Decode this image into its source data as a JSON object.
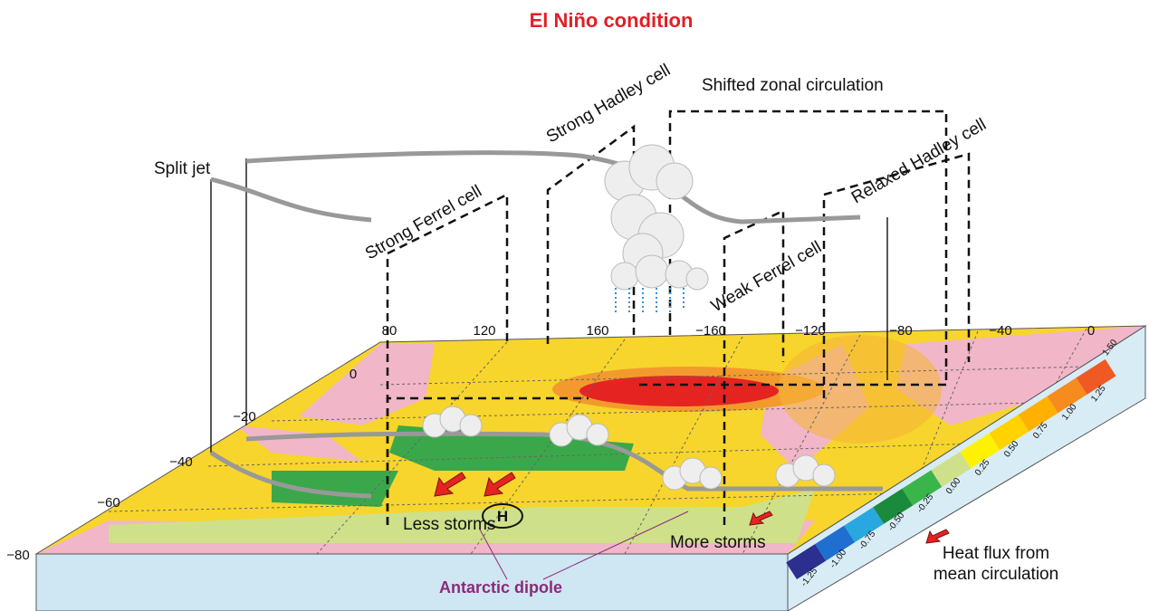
{
  "title": "El Niño condition",
  "circulation_labels": {
    "strong_hadley": "Strong Hadley cell",
    "shifted_zonal": "Shifted zonal circulation",
    "relaxed_hadley": "Relaxed Hadley cell",
    "strong_ferrel": "Strong Ferrel cell",
    "weak_ferrel": "Weak Ferrel cell",
    "split_jet": "Split jet"
  },
  "longitude_labels": [
    "80",
    "120",
    "160",
    "−160",
    "−120",
    "−80",
    "−40",
    "0"
  ],
  "latitude_labels": [
    "0",
    "−20",
    "−40",
    "−60",
    "−80"
  ],
  "annotations": {
    "less_storms": "Less storms",
    "more_storms": "More storms",
    "dipole": "Antarctic dipole",
    "high": "H"
  },
  "legend": {
    "heat_flux": [
      "Heat flux from",
      "mean circulation"
    ]
  },
  "colorbar_labels": [
    "-1.25",
    "-1.00",
    "-0.75",
    "-0.50",
    "-0.25",
    "0.00",
    "0.25",
    "0.50",
    "0.75",
    "1.00",
    "1.25",
    "1.50"
  ]
}
